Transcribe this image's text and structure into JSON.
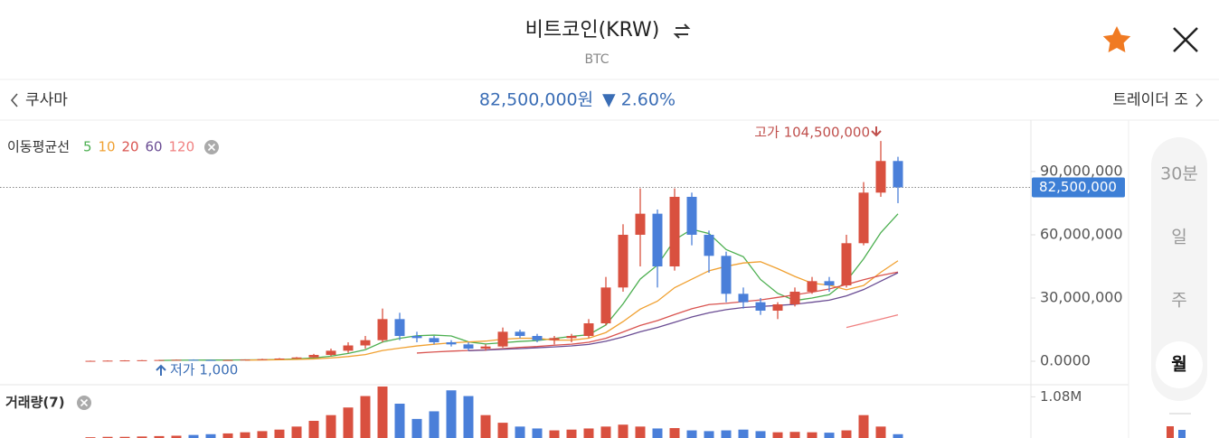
{
  "header": {
    "title": "비트코인(KRW)",
    "symbol": "BTC"
  },
  "nav": {
    "prev": "쿠사마",
    "price": "82,500,000원",
    "change": "▼ 2.60%",
    "next": "트레이더 조"
  },
  "intervals": [
    "30분",
    "일",
    "주",
    "월"
  ],
  "selected_interval": 3,
  "chart_data": {
    "type": "candlestick",
    "legend_title": "이동평균선",
    "up_color": "#d9503f",
    "down_color": "#4a7fd9",
    "ylim": [
      -10700000.0,
      114400000.0
    ],
    "yticks": [
      {
        "value": 0,
        "label": "0.0000"
      },
      {
        "value": 30000000.0,
        "label": "30,000,000"
      },
      {
        "value": 60000000.0,
        "label": "60,000,000"
      },
      {
        "value": 90000000.0,
        "label": "90,000,000"
      }
    ],
    "current_price": {
      "value": 82500000.0,
      "label": "82,500,000"
    },
    "high_label": "고가 104,500,000",
    "low_label": "저가 1,000",
    "open": [
      50000.0,
      200000.0,
      300000.0,
      400000.0,
      500000.0,
      600000.0,
      700000.0,
      600000.0,
      500000.0,
      600000.0,
      800000.0,
      1000000.0,
      1300000.0,
      1800000.0,
      3000000.0,
      5000000.0,
      7500000.0,
      10000000.0,
      20000000.0,
      12000000.0,
      11000000.0,
      9000000.0,
      8000000.0,
      6000000.0,
      7000000.0,
      14000000.0,
      12000000.0,
      10000000.0,
      11000000.0,
      12000000.0,
      18000000.0,
      35000000.0,
      60000000.0,
      70000000.0,
      45000000.0,
      78000000.0,
      60000000.0,
      50000000.0,
      32000000.0,
      28000000.0,
      24000000.0,
      27000000.0,
      33000000.0,
      38000000.0,
      36000000.0,
      56000000.0,
      80000000.0,
      95000000.0
    ],
    "high": [
      300000.0,
      400000.0,
      500000.0,
      600000.0,
      700000.0,
      800000.0,
      900000.0,
      800000.0,
      700000.0,
      900000.0,
      1200000.0,
      1500000.0,
      2000000.0,
      3500000.0,
      6000000.0,
      9000000.0,
      12000000.0,
      25000000.0,
      23000000.0,
      14000000.0,
      12000000.0,
      10000000.0,
      9000000.0,
      8000000.0,
      16000000.0,
      15000000.0,
      13000000.0,
      12000000.0,
      13000000.0,
      20000000.0,
      40000000.0,
      65000000.0,
      82000000.0,
      72000000.0,
      82000000.0,
      80000000.0,
      62000000.0,
      52000000.0,
      35000000.0,
      30000000.0,
      28000000.0,
      35000000.0,
      40000000.0,
      40000000.0,
      60000000.0,
      85000000.0,
      104500000.0,
      97000000.0
    ],
    "low": [
      20000.0,
      100000.0,
      1000.0,
      300000.0,
      400000.0,
      500000.0,
      500000.0,
      400000.0,
      400000.0,
      500000.0,
      700000.0,
      900000.0,
      1100000.0,
      1600000.0,
      2500000.0,
      4000000.0,
      6000000.0,
      9000000.0,
      10000000.0,
      9000000.0,
      8000000.0,
      7000000.0,
      5000000.0,
      5000000.0,
      6500000.0,
      11000000.0,
      9000000.0,
      8000000.0,
      9000000.0,
      11000000.0,
      17000000.0,
      33000000.0,
      45000000.0,
      35000000.0,
      43000000.0,
      55000000.0,
      42000000.0,
      28000000.0,
      25000000.0,
      22000000.0,
      20000000.0,
      26000000.0,
      32000000.0,
      33000000.0,
      35000000.0,
      55000000.0,
      78000000.0,
      75000000.0
    ],
    "close": [
      200000.0,
      300000.0,
      400000.0,
      500000.0,
      600000.0,
      700000.0,
      600000.0,
      500000.0,
      600000.0,
      800000.0,
      1000000.0,
      1300000.0,
      1800000.0,
      3000000.0,
      5000000.0,
      7500000.0,
      10000000.0,
      20000000.0,
      12000000.0,
      11000000.0,
      9000000.0,
      8000000.0,
      6000000.0,
      7000000.0,
      14000000.0,
      12000000.0,
      10000000.0,
      11000000.0,
      12000000.0,
      18000000.0,
      35000000.0,
      60000000.0,
      70000000.0,
      45000000.0,
      78000000.0,
      60000000.0,
      50000000.0,
      32000000.0,
      28000000.0,
      24000000.0,
      27000000.0,
      33000000.0,
      38000000.0,
      36000000.0,
      56000000.0,
      80000000.0,
      95000000.0,
      82500000.0
    ],
    "series": [
      {
        "name": "5",
        "color": "#4caf50",
        "values": [
          null,
          null,
          null,
          null,
          400000.0,
          500000.0,
          560000.0,
          580000.0,
          600000.0,
          640000.0,
          700000.0,
          840000.0,
          1100000.0,
          1580000.0,
          2420000.0,
          3720000.0,
          5460000.0,
          9100000.0,
          10900000.0,
          12100000.0,
          12400000.0,
          12000000.0,
          9200000.0,
          8200000.0,
          8800000.0,
          9400000.0,
          9800000.0,
          10800000.0,
          11800000.0,
          12600000.0,
          17200000.0,
          27200000.0,
          39000000.0,
          45600000.0,
          57600000.0,
          62600000.0,
          60600000.0,
          53000000.0,
          49600000.0,
          38800000.0,
          32200000.0,
          28800000.0,
          30000000.0,
          31600000.0,
          38000000.0,
          48600000.0,
          61000000.0,
          69900000.0
        ]
      },
      {
        "name": "10",
        "color": "#f0a030",
        "values": [
          null,
          null,
          null,
          null,
          null,
          null,
          null,
          null,
          null,
          540000.0,
          620000.0,
          720000.0,
          860000.0,
          1110000.0,
          1550000.0,
          2230000.0,
          3170000.0,
          5100000.0,
          6240000.0,
          7270000.0,
          8070000.0,
          8740000.0,
          9160000.0,
          9560000.0,
          10460000.0,
          10910000.0,
          10910000.0,
          10010000.0,
          10010000.0,
          10920000.0,
          13620000.0,
          18820000.0,
          24720000.0,
          28520000.0,
          34920000.0,
          38920000.0,
          42920000.0,
          45020000.0,
          46620000.0,
          47220000.0,
          43920000.0,
          40220000.0,
          37020000.0,
          36120000.0,
          33920000.0,
          35920000.0,
          42220000.0,
          47670000.0
        ]
      },
      {
        "name": "20",
        "color": "#d9534f",
        "values": [
          null,
          null,
          null,
          null,
          null,
          null,
          null,
          null,
          null,
          null,
          null,
          null,
          null,
          null,
          null,
          null,
          null,
          null,
          null,
          3900000.0,
          4400000.0,
          4800000.0,
          5100000.0,
          5400000.0,
          6000000.0,
          6600000.0,
          7000000.0,
          7600000.0,
          8100000.0,
          9000000.0,
          10900000.0,
          13900000.0,
          17000000.0,
          19300000.0,
          22200000.0,
          24900000.0,
          26900000.0,
          27500000.0,
          28300000.0,
          29100000.0,
          30300000.0,
          31500000.0,
          32800000.0,
          34300000.0,
          36400000.0,
          38700000.0,
          40700000.0,
          42300000.0
        ]
      },
      {
        "name": "60",
        "color": "#6a4c93",
        "values": [
          null,
          null,
          null,
          null,
          null,
          null,
          null,
          null,
          null,
          null,
          null,
          null,
          null,
          null,
          null,
          null,
          null,
          null,
          null,
          null,
          null,
          null,
          5000000.0,
          5300000.0,
          5700000.0,
          6000000.0,
          6400000.0,
          6800000.0,
          7300000.0,
          8000000.0,
          9500000.0,
          11500000.0,
          14000000.0,
          16000000.0,
          18500000.0,
          21000000.0,
          23000000.0,
          24500000.0,
          25500000.0,
          26000000.0,
          26500000.0,
          27000000.0,
          28000000.0,
          29000000.0,
          31000000.0,
          34000000.0,
          38000000.0,
          42000000.0
        ]
      },
      {
        "name": "120",
        "color": "#f08080",
        "values": [
          null,
          null,
          null,
          null,
          null,
          null,
          null,
          null,
          null,
          null,
          null,
          null,
          null,
          null,
          null,
          null,
          null,
          null,
          null,
          null,
          null,
          null,
          null,
          null,
          null,
          null,
          null,
          null,
          null,
          null,
          null,
          null,
          null,
          null,
          null,
          null,
          null,
          null,
          null,
          null,
          null,
          null,
          null,
          null,
          16000000.0,
          18000000.0,
          20000000.0,
          22000000.0
        ]
      }
    ],
    "volume_title": "거래량(7)",
    "volume_ylim": [
      0,
      1350000
    ],
    "volume_yticks": [
      {
        "value": 1080000,
        "label": "1.08M"
      }
    ],
    "volume": [
      20000,
      30000,
      30000,
      40000,
      50000,
      60000,
      80000,
      100000,
      120000,
      150000,
      180000,
      220000,
      300000,
      450000,
      600000,
      800000,
      1100000,
      1350000,
      900000,
      500000,
      700000,
      1250000,
      1100000,
      600000,
      400000,
      300000,
      250000,
      200000,
      220000,
      250000,
      300000,
      350000,
      300000,
      250000,
      260000,
      200000,
      180000,
      200000,
      220000,
      180000,
      150000,
      160000,
      150000,
      140000,
      200000,
      600000,
      300000,
      100000
    ]
  }
}
